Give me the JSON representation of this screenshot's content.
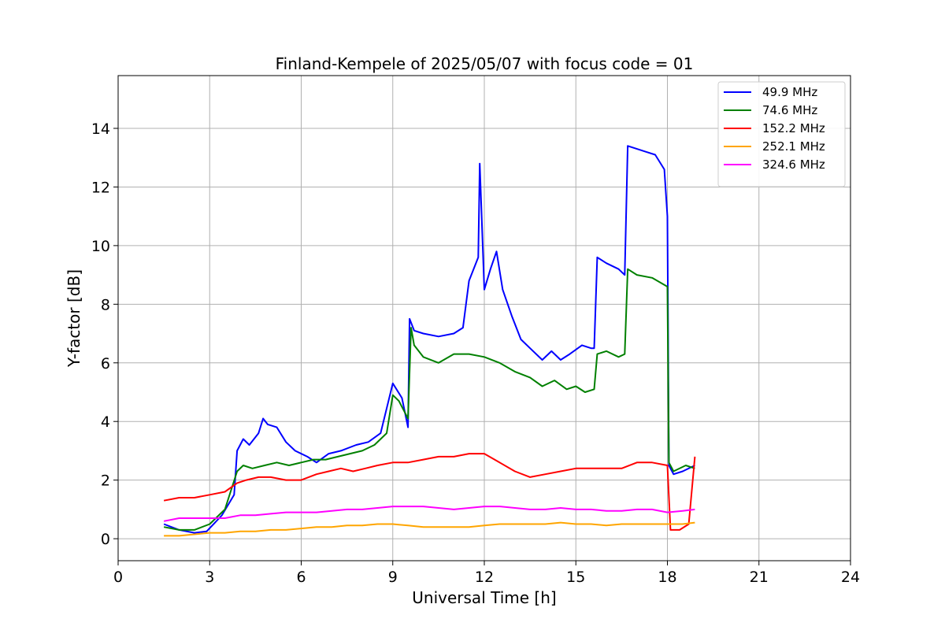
{
  "chart_data": {
    "type": "line",
    "title": "Finland-Kempele of 2025/05/07 with focus code = 01",
    "xlabel": "Universal Time [h]",
    "ylabel": "Y-factor [dB]",
    "xlim": [
      0,
      24
    ],
    "ylim": [
      -0.75,
      15.8
    ],
    "xticks": [
      0,
      3,
      6,
      9,
      12,
      15,
      18,
      21,
      24
    ],
    "yticks": [
      0,
      2,
      4,
      6,
      8,
      10,
      12,
      14
    ],
    "grid": true,
    "legend_position": "upper right",
    "series": [
      {
        "name": " 49.9 MHz",
        "color": "#0000ff",
        "x": [
          1.5,
          2.0,
          2.5,
          2.9,
          3.4,
          3.8,
          3.9,
          4.1,
          4.3,
          4.6,
          4.75,
          4.9,
          5.2,
          5.5,
          5.8,
          6.2,
          6.5,
          6.9,
          7.3,
          7.8,
          8.2,
          8.6,
          9.0,
          9.3,
          9.5,
          9.55,
          9.7,
          10.0,
          10.5,
          11.0,
          11.3,
          11.5,
          11.8,
          11.85,
          12.0,
          12.2,
          12.4,
          12.6,
          12.9,
          13.2,
          13.5,
          13.9,
          14.2,
          14.5,
          14.8,
          15.2,
          15.5,
          15.6,
          15.7,
          16.0,
          16.4,
          16.6,
          16.7,
          17.0,
          17.3,
          17.6,
          17.9,
          18.0,
          18.05,
          18.2,
          18.5,
          18.9
        ],
        "y": [
          0.5,
          0.3,
          0.2,
          0.25,
          0.8,
          1.5,
          3.0,
          3.4,
          3.2,
          3.6,
          4.1,
          3.9,
          3.8,
          3.3,
          3.0,
          2.8,
          2.6,
          2.9,
          3.0,
          3.2,
          3.3,
          3.6,
          5.3,
          4.8,
          3.8,
          7.5,
          7.1,
          7.0,
          6.9,
          7.0,
          7.2,
          8.8,
          9.6,
          12.8,
          8.5,
          9.2,
          9.8,
          8.5,
          7.6,
          6.8,
          6.5,
          6.1,
          6.4,
          6.1,
          6.3,
          6.6,
          6.5,
          6.5,
          9.6,
          9.4,
          9.2,
          9.0,
          13.4,
          13.3,
          13.2,
          13.1,
          12.6,
          11.0,
          2.5,
          2.2,
          2.3,
          2.5
        ]
      },
      {
        "name": " 74.6 MHz",
        "color": "#008000",
        "x": [
          1.5,
          2.0,
          2.5,
          3.0,
          3.5,
          3.9,
          4.1,
          4.4,
          4.8,
          5.2,
          5.6,
          6.0,
          6.4,
          6.8,
          7.2,
          7.6,
          8.0,
          8.4,
          8.8,
          9.0,
          9.2,
          9.5,
          9.6,
          9.7,
          10.0,
          10.5,
          11.0,
          11.5,
          12.0,
          12.5,
          13.0,
          13.5,
          13.9,
          14.3,
          14.7,
          15.0,
          15.3,
          15.6,
          15.7,
          16.0,
          16.4,
          16.6,
          16.7,
          17.0,
          17.5,
          18.0,
          18.05,
          18.2,
          18.6,
          18.9
        ],
        "y": [
          0.4,
          0.3,
          0.3,
          0.5,
          1.0,
          2.3,
          2.5,
          2.4,
          2.5,
          2.6,
          2.5,
          2.6,
          2.7,
          2.7,
          2.8,
          2.9,
          3.0,
          3.2,
          3.6,
          4.9,
          4.7,
          4.1,
          7.2,
          6.6,
          6.2,
          6.0,
          6.3,
          6.3,
          6.2,
          6.0,
          5.7,
          5.5,
          5.2,
          5.4,
          5.1,
          5.2,
          5.0,
          5.1,
          6.3,
          6.4,
          6.2,
          6.3,
          9.2,
          9.0,
          8.9,
          8.6,
          2.6,
          2.3,
          2.5,
          2.4
        ]
      },
      {
        "name": " 152.2 MHz",
        "color": "#ff0000",
        "x": [
          1.5,
          2.0,
          2.5,
          3.0,
          3.5,
          3.9,
          4.2,
          4.6,
          5.0,
          5.5,
          6.0,
          6.5,
          6.9,
          7.3,
          7.7,
          8.1,
          8.5,
          9.0,
          9.5,
          10.0,
          10.5,
          11.0,
          11.5,
          12.0,
          12.5,
          13.0,
          13.5,
          14.0,
          14.5,
          15.0,
          15.5,
          16.0,
          16.5,
          17.0,
          17.5,
          18.0,
          18.1,
          18.4,
          18.7,
          18.9
        ],
        "y": [
          1.3,
          1.4,
          1.4,
          1.5,
          1.6,
          1.9,
          2.0,
          2.1,
          2.1,
          2.0,
          2.0,
          2.2,
          2.3,
          2.4,
          2.3,
          2.4,
          2.5,
          2.6,
          2.6,
          2.7,
          2.8,
          2.8,
          2.9,
          2.9,
          2.6,
          2.3,
          2.1,
          2.2,
          2.3,
          2.4,
          2.4,
          2.4,
          2.4,
          2.6,
          2.6,
          2.5,
          0.3,
          0.3,
          0.5,
          2.8
        ]
      },
      {
        "name": " 252.1 MHz",
        "color": "#ffa500",
        "x": [
          1.5,
          2.0,
          2.5,
          3.0,
          3.5,
          4.0,
          4.5,
          5.0,
          5.5,
          6.0,
          6.5,
          7.0,
          7.5,
          8.0,
          8.5,
          9.0,
          9.5,
          10.0,
          10.5,
          11.0,
          11.5,
          12.0,
          12.5,
          13.0,
          13.5,
          14.0,
          14.5,
          15.0,
          15.5,
          16.0,
          16.5,
          17.0,
          17.5,
          18.0,
          18.5,
          18.9
        ],
        "y": [
          0.1,
          0.1,
          0.15,
          0.2,
          0.2,
          0.25,
          0.25,
          0.3,
          0.3,
          0.35,
          0.4,
          0.4,
          0.45,
          0.45,
          0.5,
          0.5,
          0.45,
          0.4,
          0.4,
          0.4,
          0.4,
          0.45,
          0.5,
          0.5,
          0.5,
          0.5,
          0.55,
          0.5,
          0.5,
          0.45,
          0.5,
          0.5,
          0.5,
          0.5,
          0.5,
          0.55
        ]
      },
      {
        "name": " 324.6 MHz",
        "color": "#ff00ff",
        "x": [
          1.5,
          2.0,
          2.5,
          3.0,
          3.5,
          4.0,
          4.5,
          5.0,
          5.5,
          6.0,
          6.5,
          7.0,
          7.5,
          8.0,
          8.5,
          9.0,
          9.5,
          10.0,
          10.5,
          11.0,
          11.5,
          12.0,
          12.5,
          13.0,
          13.5,
          14.0,
          14.5,
          15.0,
          15.5,
          16.0,
          16.5,
          17.0,
          17.5,
          18.0,
          18.5,
          18.9
        ],
        "y": [
          0.6,
          0.7,
          0.7,
          0.7,
          0.7,
          0.8,
          0.8,
          0.85,
          0.9,
          0.9,
          0.9,
          0.95,
          1.0,
          1.0,
          1.05,
          1.1,
          1.1,
          1.1,
          1.05,
          1.0,
          1.05,
          1.1,
          1.1,
          1.05,
          1.0,
          1.0,
          1.05,
          1.0,
          1.0,
          0.95,
          0.95,
          1.0,
          1.0,
          0.9,
          0.95,
          1.0
        ]
      }
    ]
  }
}
